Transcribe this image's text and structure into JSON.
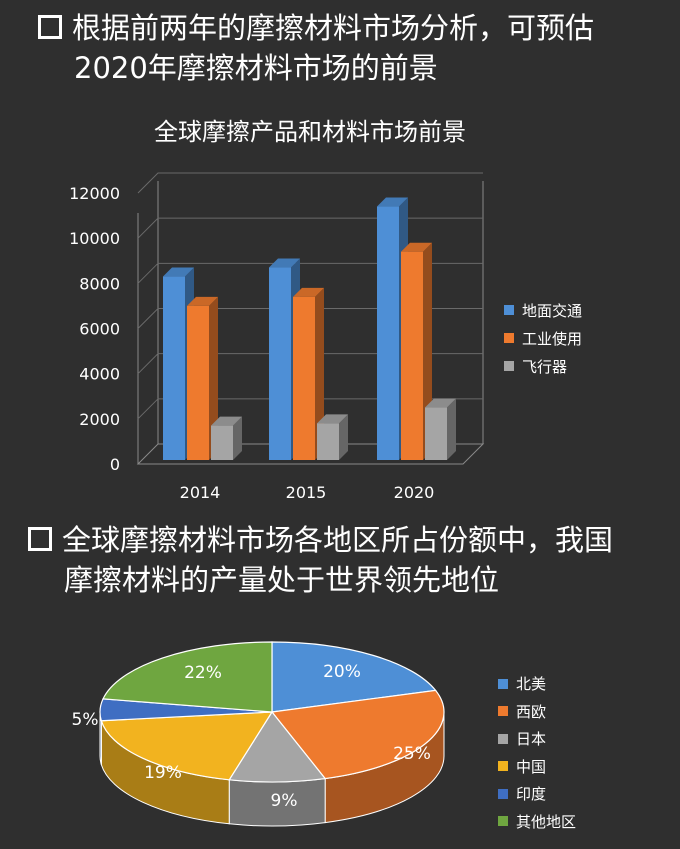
{
  "heading1": {
    "line1": "根据前两年的摩擦材料市场分析，可预估",
    "line2": "2020年摩擦材料市场的前景"
  },
  "heading2": {
    "line1": "全球摩擦材料市场各地区所占份额中，我国",
    "line2": "摩擦材料的产量处于世界领先地位"
  },
  "chart_data": [
    {
      "type": "bar",
      "title": "全球摩擦产品和材料市场前景",
      "categories": [
        "2014",
        "2015",
        "2020"
      ],
      "series": [
        {
          "name": "地面交通",
          "color": "#4e8fd6",
          "values": [
            8300,
            8700,
            11400
          ]
        },
        {
          "name": "工业使用",
          "color": "#ee7a2e",
          "values": [
            7000,
            7400,
            9400
          ]
        },
        {
          "name": "飞行器",
          "color": "#a5a5a5",
          "values": [
            1700,
            1800,
            2500
          ]
        }
      ],
      "y_ticks": [
        "0",
        "2000",
        "4000",
        "6000",
        "8000",
        "10000",
        "12000"
      ],
      "ylim": [
        0,
        12000
      ],
      "legend_position": "right",
      "style": "3d"
    },
    {
      "type": "pie",
      "slices": [
        {
          "name": "北美",
          "value": 20,
          "label": "20%",
          "color": "#4e8fd6"
        },
        {
          "name": "西欧",
          "value": 25,
          "label": "25%",
          "color": "#ee7a2e"
        },
        {
          "name": "日本",
          "value": 9,
          "label": "9%",
          "color": "#a5a5a5"
        },
        {
          "name": "中国",
          "value": 19,
          "label": "19%",
          "color": "#f2b31f"
        },
        {
          "name": "印度",
          "value": 5,
          "label": "5%",
          "color": "#3f6ec2"
        },
        {
          "name": "其他地区",
          "value": 22,
          "label": "22%",
          "color": "#6fa640"
        }
      ],
      "legend_position": "right",
      "style": "3d"
    }
  ]
}
